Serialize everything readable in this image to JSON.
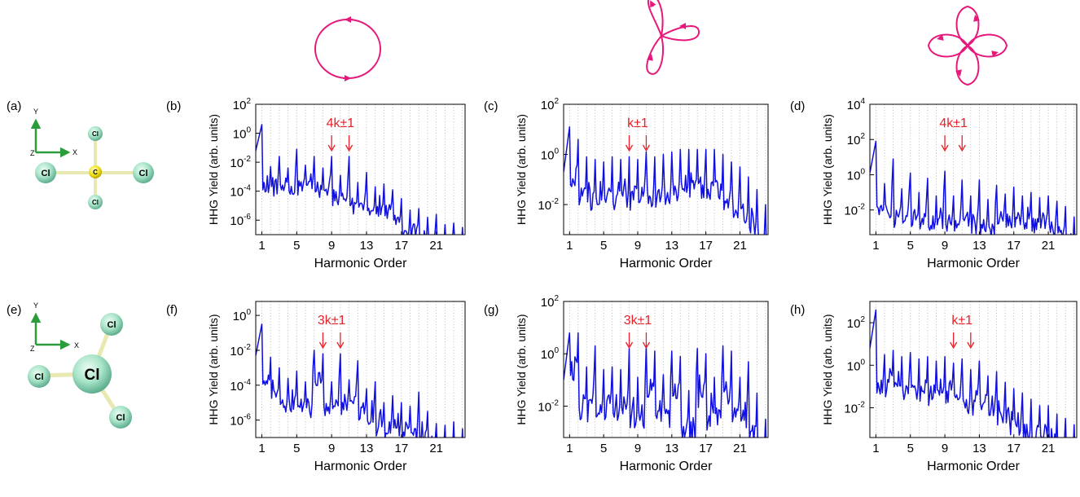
{
  "colors": {
    "line": "#1010e0",
    "annotation": "#e8202a",
    "field": "#e6187a",
    "carbon": "#f2e21a",
    "chlorine": "#a8e4c8",
    "axis_arrow": "#2a9d3a",
    "grid": "#aaaaaa"
  },
  "field_icons": [
    {
      "name": "circular-field-icon"
    },
    {
      "name": "trefoil-field-icon"
    },
    {
      "name": "four-leaf-field-icon"
    }
  ],
  "molecules": [
    {
      "label": "(a)",
      "axes": [
        "Y",
        "Z",
        "X"
      ],
      "atoms": [
        "Cl",
        "Cl",
        "Cl",
        "Cl",
        "C"
      ]
    },
    {
      "label": "(e)",
      "axes": [
        "Y",
        "Z",
        "X"
      ],
      "atoms": [
        "Cl",
        "Cl",
        "Cl",
        "Cl"
      ]
    }
  ],
  "chart_data": [
    {
      "label": "(b)",
      "type": "line",
      "xlabel": "Harmonic Order",
      "ylabel": "HHG Yield  (arb. units)",
      "log": true,
      "ylim": [
        -7,
        2
      ],
      "yticks": [
        2,
        0,
        -2,
        -4,
        -6
      ],
      "xlim": [
        0.3,
        24.3
      ],
      "xticks": [
        1,
        5,
        9,
        13,
        17,
        21
      ],
      "grid": "vertical dotted at every integer order",
      "annotation": {
        "text": "4k±1",
        "arrows_at": [
          9,
          11
        ]
      },
      "peaks": [
        [
          1,
          0.6
        ],
        [
          2,
          -2.3
        ],
        [
          3,
          -1.6
        ],
        [
          4,
          -2.4
        ],
        [
          5,
          -1.1
        ],
        [
          6,
          -2.2
        ],
        [
          7,
          -1.6
        ],
        [
          8,
          -2.4
        ],
        [
          9,
          -1.6
        ],
        [
          10,
          -2.9
        ],
        [
          11,
          -1.6
        ],
        [
          12,
          -3.4
        ],
        [
          13,
          -2.7
        ],
        [
          14,
          -3.7
        ],
        [
          15,
          -3.5
        ],
        [
          16,
          -3.9
        ],
        [
          17,
          -4.5
        ],
        [
          18,
          -5.3
        ],
        [
          19,
          -5.2
        ],
        [
          20,
          -5.8
        ],
        [
          21,
          -5.6
        ],
        [
          22,
          -6.3
        ],
        [
          23,
          -6.2
        ],
        [
          24,
          -6.5
        ]
      ]
    },
    {
      "label": "(c)",
      "type": "line",
      "xlabel": "Harmonic Order",
      "ylabel": "HHG Yield  (arb. units)",
      "log": true,
      "ylim": [
        -3.2,
        2
      ],
      "yticks": [
        2,
        0,
        -2
      ],
      "xlim": [
        0.3,
        24.3
      ],
      "xticks": [
        1,
        5,
        9,
        13,
        17,
        21
      ],
      "grid": "vertical dotted at every integer order",
      "annotation": {
        "text": "k±1",
        "arrows_at": [
          8,
          10
        ]
      },
      "peaks": [
        [
          1,
          1.1
        ],
        [
          2,
          0.6
        ],
        [
          3,
          -0.1
        ],
        [
          4,
          -0.2
        ],
        [
          5,
          -0.3
        ],
        [
          6,
          -0.1
        ],
        [
          7,
          -0.2
        ],
        [
          8,
          -0.1
        ],
        [
          9,
          -0.2
        ],
        [
          10,
          0.1
        ],
        [
          11,
          -0.1
        ],
        [
          12,
          0.0
        ],
        [
          13,
          0.1
        ],
        [
          14,
          0.2
        ],
        [
          15,
          0.2
        ],
        [
          16,
          0.2
        ],
        [
          17,
          0.2
        ],
        [
          18,
          0.2
        ],
        [
          19,
          0.0
        ],
        [
          20,
          -0.3
        ],
        [
          21,
          -0.5
        ],
        [
          22,
          -0.9
        ],
        [
          23,
          -1.4
        ],
        [
          24,
          -2.0
        ]
      ]
    },
    {
      "label": "(d)",
      "type": "line",
      "xlabel": "Harmonic Order",
      "ylabel": "HHG Yield  (arb. units)",
      "log": true,
      "ylim": [
        -3.4,
        4
      ],
      "yticks": [
        4,
        2,
        0,
        -2
      ],
      "xlim": [
        0.3,
        24.3
      ],
      "xticks": [
        1,
        5,
        9,
        13,
        17,
        21
      ],
      "grid": "vertical dotted at every integer order",
      "annotation": {
        "text": "4k±1",
        "arrows_at": [
          9,
          11
        ]
      },
      "peaks": [
        [
          1,
          1.9
        ],
        [
          2,
          -0.5
        ],
        [
          3,
          0.9
        ],
        [
          4,
          -0.8
        ],
        [
          5,
          0.1
        ],
        [
          6,
          -1.0
        ],
        [
          7,
          -0.2
        ],
        [
          8,
          -1.2
        ],
        [
          9,
          0.2
        ],
        [
          10,
          -1.2
        ],
        [
          11,
          -0.3
        ],
        [
          12,
          -1.2
        ],
        [
          13,
          -0.3
        ],
        [
          14,
          -1.4
        ],
        [
          15,
          -0.6
        ],
        [
          16,
          -1.1
        ],
        [
          17,
          -0.7
        ],
        [
          18,
          -1.2
        ],
        [
          19,
          -1.0
        ],
        [
          20,
          -1.3
        ],
        [
          21,
          -1.2
        ],
        [
          22,
          -1.5
        ],
        [
          23,
          -1.8
        ],
        [
          24,
          -2.4
        ]
      ]
    },
    {
      "label": "(f)",
      "type": "line",
      "xlabel": "Harmonic Order",
      "ylabel": "HHG Yield  (arb. units)",
      "log": true,
      "ylim": [
        -7,
        0.8
      ],
      "yticks": [
        0,
        -2,
        -4,
        -6
      ],
      "xlim": [
        0.3,
        24.3
      ],
      "xticks": [
        1,
        5,
        9,
        13,
        17,
        21
      ],
      "grid": "vertical dotted at every integer order",
      "annotation": {
        "text": "3k±1",
        "arrows_at": [
          8,
          10
        ]
      },
      "peaks": [
        [
          1,
          -0.5
        ],
        [
          2,
          -2.4
        ],
        [
          3,
          -3.0
        ],
        [
          4,
          -3.6
        ],
        [
          5,
          -3.2
        ],
        [
          6,
          -3.8
        ],
        [
          7,
          -2.0
        ],
        [
          8,
          -2.2
        ],
        [
          9,
          -3.8
        ],
        [
          10,
          -2.2
        ],
        [
          11,
          -3.7
        ],
        [
          12,
          -2.6
        ],
        [
          13,
          -4.2
        ],
        [
          14,
          -3.8
        ],
        [
          15,
          -5.0
        ],
        [
          16,
          -4.6
        ],
        [
          17,
          -5.0
        ],
        [
          18,
          -5.2
        ],
        [
          19,
          -4.4
        ],
        [
          20,
          -5.5
        ],
        [
          21,
          -6.2
        ],
        [
          22,
          -6.3
        ],
        [
          23,
          -6.1
        ],
        [
          24,
          -6.5
        ]
      ]
    },
    {
      "label": "(g)",
      "type": "line",
      "xlabel": "Harmonic Order",
      "ylabel": "HHG Yield  (arb. units)",
      "log": true,
      "ylim": [
        -3.2,
        2
      ],
      "yticks": [
        2,
        0,
        -2
      ],
      "xlim": [
        0.3,
        24.3
      ],
      "xticks": [
        1,
        5,
        9,
        13,
        17,
        21
      ],
      "grid": "vertical dotted at every integer order",
      "annotation": {
        "text": "3k±1",
        "arrows_at": [
          8,
          10
        ]
      },
      "peaks": [
        [
          1,
          0.8
        ],
        [
          2,
          0.8
        ],
        [
          3,
          -0.5
        ],
        [
          4,
          0.3
        ],
        [
          5,
          -0.6
        ],
        [
          6,
          -0.5
        ],
        [
          7,
          -0.6
        ],
        [
          8,
          0.2
        ],
        [
          9,
          -0.9
        ],
        [
          10,
          0.3
        ],
        [
          11,
          0.1
        ],
        [
          12,
          -0.8
        ],
        [
          13,
          0.1
        ],
        [
          14,
          -0.1
        ],
        [
          15,
          -1.4
        ],
        [
          16,
          0.2
        ],
        [
          17,
          0.0
        ],
        [
          18,
          -0.9
        ],
        [
          19,
          0.3
        ],
        [
          20,
          0.1
        ],
        [
          21,
          -0.9
        ],
        [
          22,
          -0.3
        ],
        [
          23,
          -1.5
        ],
        [
          24,
          -2.5
        ]
      ]
    },
    {
      "label": "(h)",
      "type": "line",
      "xlabel": "Harmonic Order",
      "ylabel": "HHG Yield  (arb. units)",
      "log": true,
      "ylim": [
        -3.4,
        3
      ],
      "yticks": [
        2,
        0,
        -2
      ],
      "xlim": [
        0.3,
        24.3
      ],
      "xticks": [
        1,
        5,
        9,
        13,
        17,
        21
      ],
      "grid": "vertical dotted at every integer order",
      "annotation": {
        "text": "k±1",
        "arrows_at": [
          10,
          12
        ]
      },
      "peaks": [
        [
          1,
          2.6
        ],
        [
          2,
          0.5
        ],
        [
          3,
          0.7
        ],
        [
          4,
          0.4
        ],
        [
          5,
          0.6
        ],
        [
          6,
          0.3
        ],
        [
          7,
          0.4
        ],
        [
          8,
          0.2
        ],
        [
          9,
          0.4
        ],
        [
          10,
          0.1
        ],
        [
          11,
          0.3
        ],
        [
          12,
          -0.2
        ],
        [
          13,
          0.2
        ],
        [
          14,
          -0.5
        ],
        [
          15,
          -0.3
        ],
        [
          16,
          -0.8
        ],
        [
          17,
          -1.1
        ],
        [
          18,
          -1.3
        ],
        [
          19,
          -1.6
        ],
        [
          20,
          -1.9
        ],
        [
          21,
          -1.9
        ],
        [
          22,
          -2.3
        ],
        [
          23,
          -2.5
        ],
        [
          24,
          -2.8
        ]
      ]
    }
  ]
}
